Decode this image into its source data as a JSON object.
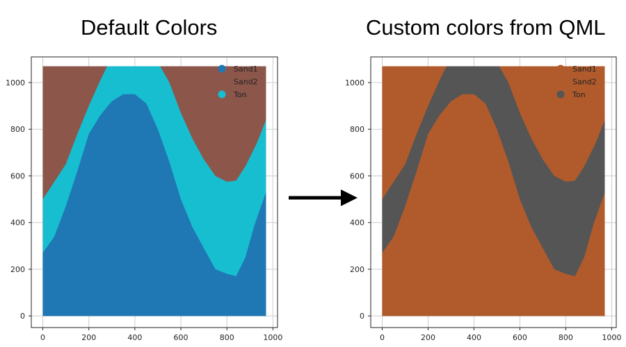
{
  "titles": {
    "left": "Default Colors",
    "right": "Custom colors from QML"
  },
  "chart_data": [
    {
      "type": "area",
      "title": "Default Colors",
      "xlim": [
        -50,
        1020
      ],
      "ylim": [
        -50,
        1110
      ],
      "xticks": [
        0,
        200,
        400,
        600,
        800,
        1000
      ],
      "yticks": [
        0,
        200,
        400,
        600,
        800,
        1000
      ],
      "grid": true,
      "legend_position": "top-right",
      "legend": [
        {
          "name": "Sand1",
          "color": "#1f77b4"
        },
        {
          "name": "Sand2",
          "color": "#8c564b"
        },
        {
          "name": "Ton",
          "color": "#17becf"
        }
      ],
      "domain": {
        "xmin": 0,
        "xmax": 970,
        "ymin": 0,
        "ymax": 1070
      },
      "upper_boundary": {
        "x": [
          0,
          100,
          150,
          200,
          250,
          280,
          320,
          400,
          480,
          510,
          550,
          600,
          650,
          700,
          750,
          800,
          840,
          880,
          930,
          970
        ],
        "y": [
          500,
          650,
          780,
          900,
          1010,
          1070,
          1070,
          1070,
          1070,
          1070,
          1000,
          870,
          760,
          670,
          600,
          575,
          580,
          640,
          740,
          840
        ]
      },
      "lower_boundary": {
        "x": [
          0,
          50,
          100,
          150,
          200,
          250,
          300,
          350,
          400,
          450,
          500,
          550,
          600,
          650,
          700,
          750,
          800,
          840,
          880,
          920,
          970
        ],
        "y": [
          270,
          340,
          470,
          620,
          780,
          860,
          920,
          950,
          950,
          910,
          800,
          660,
          500,
          380,
          290,
          200,
          180,
          170,
          250,
          390,
          530
        ]
      },
      "area_colors": {
        "below_lower": "#1f77b4",
        "between": "#17becf",
        "above_upper": "#8c564b"
      }
    },
    {
      "type": "area",
      "title": "Custom colors from QML",
      "xlim": [
        -50,
        1020
      ],
      "ylim": [
        -50,
        1110
      ],
      "xticks": [
        0,
        200,
        400,
        600,
        800,
        1000
      ],
      "yticks": [
        0,
        200,
        400,
        600,
        800,
        1000
      ],
      "grid": true,
      "legend_position": "top-right",
      "legend": [
        {
          "name": "Sand1",
          "color": "#b15b2c"
        },
        {
          "name": "Sand2",
          "color": "#b15b2c"
        },
        {
          "name": "Ton",
          "color": "#555555"
        }
      ],
      "domain": {
        "xmin": 0,
        "xmax": 970,
        "ymin": 0,
        "ymax": 1070
      },
      "upper_boundary": {
        "x": [
          0,
          100,
          150,
          200,
          250,
          280,
          320,
          400,
          480,
          510,
          550,
          600,
          650,
          700,
          750,
          800,
          840,
          880,
          930,
          970
        ],
        "y": [
          500,
          650,
          780,
          900,
          1010,
          1070,
          1070,
          1070,
          1070,
          1070,
          1000,
          870,
          760,
          670,
          600,
          575,
          580,
          640,
          740,
          840
        ]
      },
      "lower_boundary": {
        "x": [
          0,
          50,
          100,
          150,
          200,
          250,
          300,
          350,
          400,
          450,
          500,
          550,
          600,
          650,
          700,
          750,
          800,
          840,
          880,
          920,
          970
        ],
        "y": [
          270,
          340,
          470,
          620,
          780,
          860,
          920,
          950,
          950,
          910,
          800,
          660,
          500,
          380,
          290,
          200,
          180,
          170,
          250,
          390,
          530
        ]
      },
      "area_colors": {
        "below_lower": "#b15b2c",
        "between": "#555555",
        "above_upper": "#b15b2c"
      }
    }
  ],
  "arrow": {
    "color": "#000000"
  }
}
